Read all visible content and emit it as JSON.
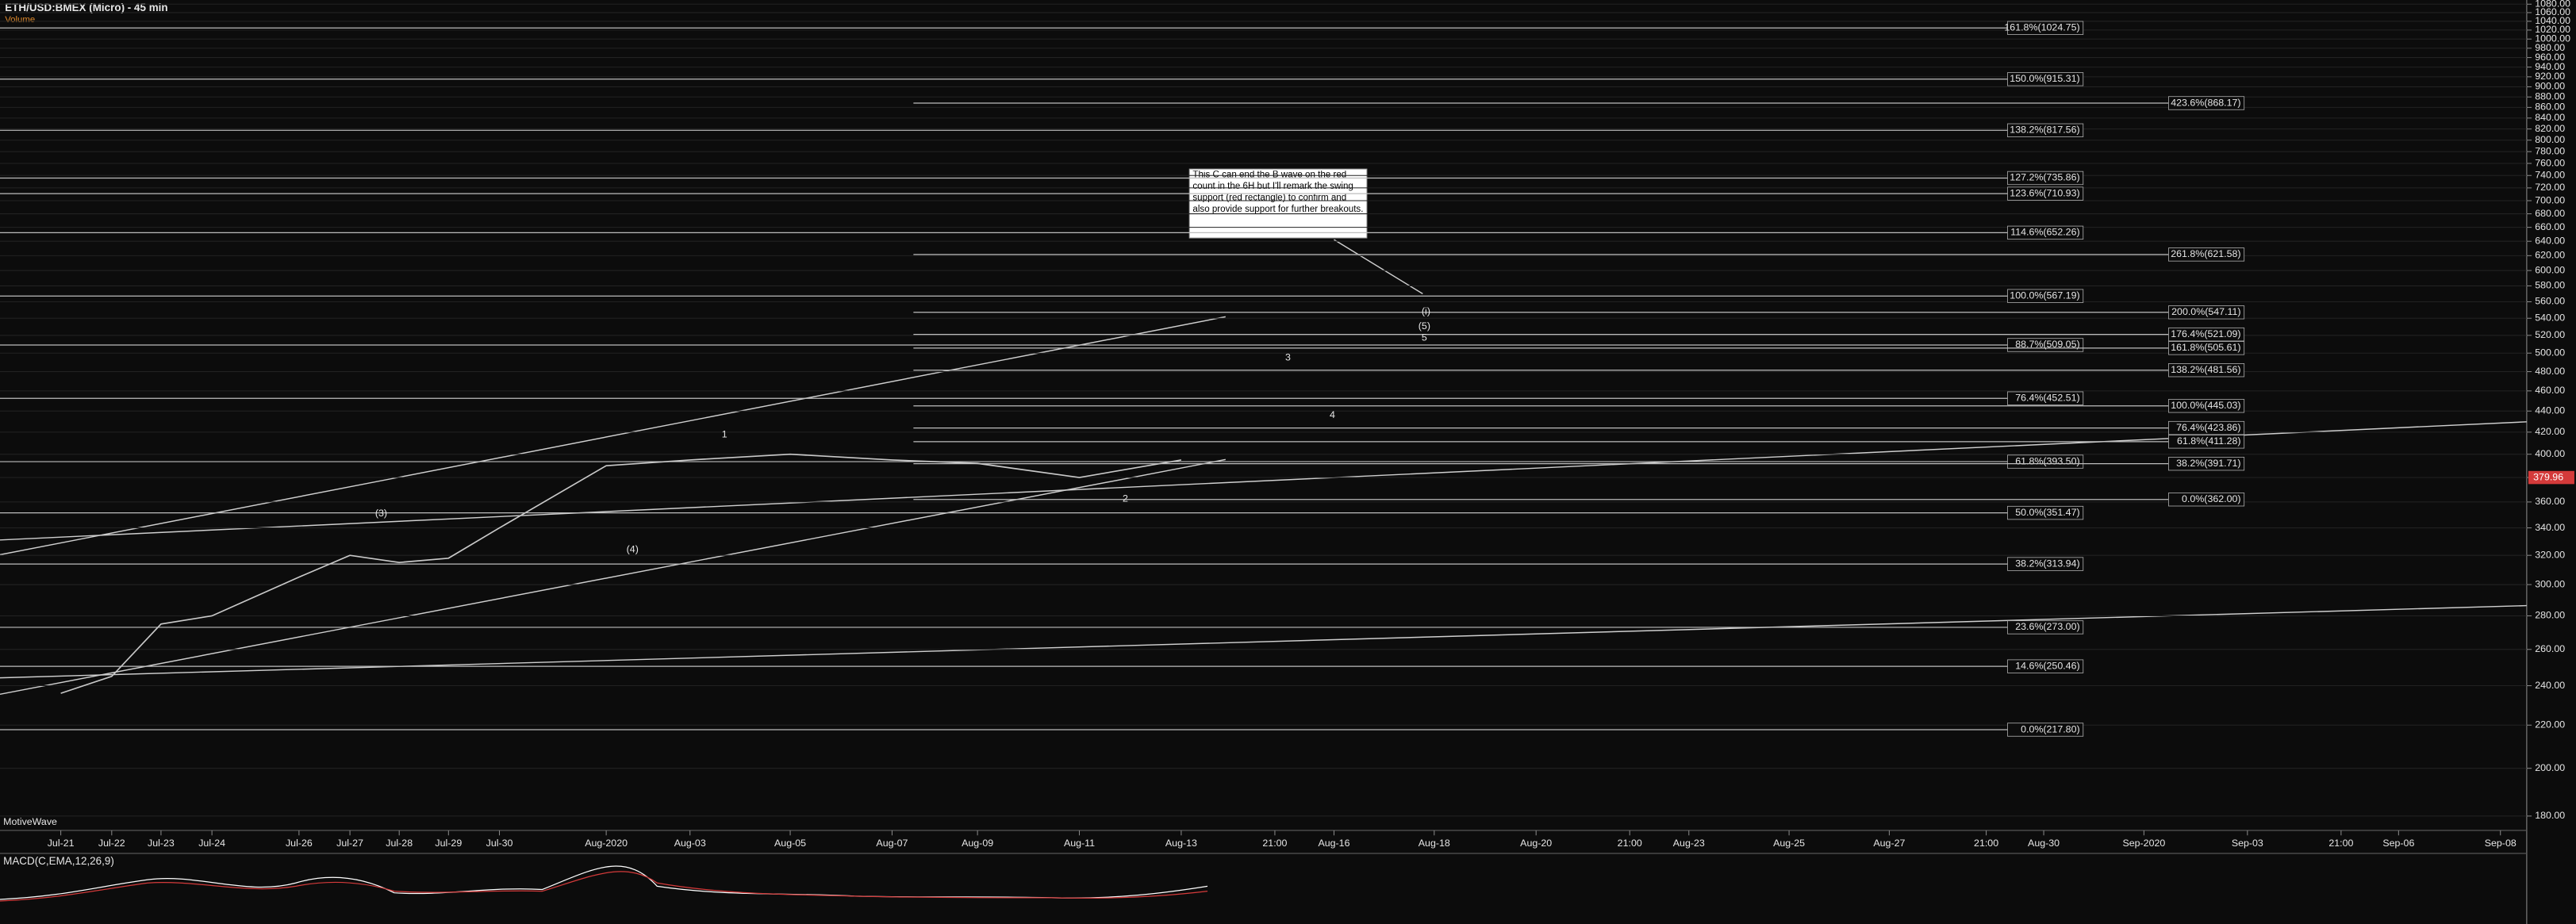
{
  "chart_data": {
    "type": "line",
    "title": "ETH/USD:BMEX (Micro) - 45 min",
    "subtitle": "Volume",
    "watermark": "MotiveWave",
    "indicator": "MACD(C,EMA,12,26,9)",
    "log_scale": true,
    "ylim": [
      175,
      1090
    ],
    "yticks": [
      {
        "value": 180,
        "label": "180.00"
      },
      {
        "value": 200,
        "label": "200.00"
      },
      {
        "value": 220,
        "label": "220.00"
      },
      {
        "value": 240,
        "label": "240.00"
      },
      {
        "value": 260,
        "label": "260.00"
      },
      {
        "value": 280,
        "label": "280.00"
      },
      {
        "value": 300,
        "label": "300.00"
      },
      {
        "value": 320,
        "label": "320.00"
      },
      {
        "value": 340,
        "label": "340.00"
      },
      {
        "value": 360,
        "label": "360.00"
      },
      {
        "value": 380,
        "label": "380.00"
      },
      {
        "value": 400,
        "label": "400.00"
      },
      {
        "value": 420,
        "label": "420.00"
      },
      {
        "value": 440,
        "label": "440.00"
      },
      {
        "value": 460,
        "label": "460.00"
      },
      {
        "value": 480,
        "label": "480.00"
      },
      {
        "value": 500,
        "label": "500.00"
      },
      {
        "value": 520,
        "label": "520.00"
      },
      {
        "value": 540,
        "label": "540.00"
      },
      {
        "value": 560,
        "label": "560.00"
      },
      {
        "value": 580,
        "label": "580.00"
      },
      {
        "value": 600,
        "label": "600.00"
      },
      {
        "value": 620,
        "label": "620.00"
      },
      {
        "value": 640,
        "label": "640.00"
      },
      {
        "value": 660,
        "label": "660.00"
      },
      {
        "value": 680,
        "label": "680.00"
      },
      {
        "value": 700,
        "label": "700.00"
      },
      {
        "value": 720,
        "label": "720.00"
      },
      {
        "value": 740,
        "label": "740.00"
      },
      {
        "value": 760,
        "label": "760.00"
      },
      {
        "value": 780,
        "label": "780.00"
      },
      {
        "value": 800,
        "label": "800.00"
      },
      {
        "value": 820,
        "label": "820.00"
      },
      {
        "value": 840,
        "label": "840.00"
      },
      {
        "value": 860,
        "label": "860.00"
      },
      {
        "value": 880,
        "label": "880.00"
      },
      {
        "value": 900,
        "label": "900.00"
      },
      {
        "value": 920,
        "label": "920.00"
      },
      {
        "value": 940,
        "label": "940.00"
      },
      {
        "value": 960,
        "label": "960.00"
      },
      {
        "value": 980,
        "label": "980.00"
      },
      {
        "value": 1000,
        "label": "1000.00"
      },
      {
        "value": 1020,
        "label": "1020.00"
      },
      {
        "value": 1040,
        "label": "1040.00"
      },
      {
        "value": 1060,
        "label": "1060.00"
      },
      {
        "value": 1080,
        "label": "1080.00"
      }
    ],
    "categories": [
      "Jul-21",
      "Jul-22",
      "Jul-23",
      "Jul-24",
      "Jul-26",
      "Jul-27",
      "Jul-28",
      "Jul-29",
      "Jul-30",
      "Aug-2020",
      "Aug-03",
      "Aug-05",
      "Aug-07",
      "Aug-09",
      "Aug-11",
      "Aug-13",
      "21:00",
      "Aug-16",
      "Aug-18",
      "Aug-20",
      "21:00",
      "Aug-23",
      "Aug-25",
      "Aug-27",
      "21:00",
      "Aug-30",
      "Sep-2020",
      "Sep-03",
      "21:00",
      "Sep-06",
      "Sep-08"
    ],
    "series": [
      {
        "name": "ETH/USD",
        "color": "#c9c9c9",
        "values": [
          236,
          245,
          275,
          280,
          305,
          320,
          315,
          318,
          340,
          390,
          395,
          400,
          395,
          392,
          380,
          395,
          null,
          null,
          null,
          null,
          null,
          null,
          null,
          null,
          null,
          null,
          null,
          null,
          null,
          null,
          null
        ]
      }
    ],
    "current_price": {
      "value": 379.96,
      "label": "379.96",
      "color": "#d43a3a"
    },
    "fib_left": [
      {
        "value": 1024.75,
        "label": "161.8%(1024.75)"
      },
      {
        "value": 915.31,
        "label": "150.0%(915.31)"
      },
      {
        "value": 817.56,
        "label": "138.2%(817.56)"
      },
      {
        "value": 735.86,
        "label": "127.2%(735.86)"
      },
      {
        "value": 710.93,
        "label": "123.6%(710.93)"
      },
      {
        "value": 652.26,
        "label": "114.6%(652.26)"
      },
      {
        "value": 567.19,
        "label": "100.0%(567.19)"
      },
      {
        "value": 509.05,
        "label": "88.7%(509.05)"
      },
      {
        "value": 452.51,
        "label": "76.4%(452.51)"
      },
      {
        "value": 393.5,
        "label": "61.8%(393.50)"
      },
      {
        "value": 351.47,
        "label": "50.0%(351.47)"
      },
      {
        "value": 313.94,
        "label": "38.2%(313.94)"
      },
      {
        "value": 273,
        "label": "23.6%(273.00)"
      },
      {
        "value": 250.46,
        "label": "14.6%(250.46)"
      },
      {
        "value": 217.8,
        "label": "0.0%(217.80)"
      }
    ],
    "fib_right": [
      {
        "value": 868.17,
        "label": "423.6%(868.17)"
      },
      {
        "value": 621.58,
        "label": "261.8%(621.58)"
      },
      {
        "value": 547.11,
        "label": "200.0%(547.11)"
      },
      {
        "value": 521.09,
        "label": "176.4%(521.09)"
      },
      {
        "value": 505.61,
        "label": "161.8%(505.61)"
      },
      {
        "value": 481.56,
        "label": "138.2%(481.56)"
      },
      {
        "value": 445.03,
        "label": "100.0%(445.03)"
      },
      {
        "value": 423.86,
        "label": "76.4%(423.86)"
      },
      {
        "value": 411.28,
        "label": "61.8%(411.28)"
      },
      {
        "value": 391.71,
        "label": "38.2%(391.71)"
      },
      {
        "value": 362,
        "label": "0.0%(362.00)"
      }
    ],
    "wave_labels": [
      "(3)",
      "(4)",
      "1",
      "2",
      "3",
      "4",
      "5",
      "(5)",
      "(i)"
    ],
    "annotation": "This C can end the B wave on the red count in the 6H but I'll remark the swing support (red rectangle) to confirm and also provide support for further breakouts."
  }
}
